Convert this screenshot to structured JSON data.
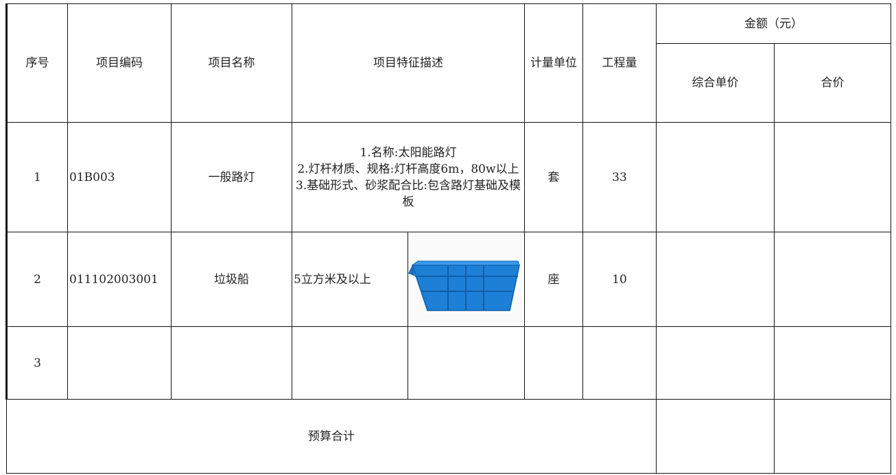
{
  "header": {
    "index": "序号",
    "code": "项目编码",
    "name": "项目名称",
    "description": "项目特征描述",
    "unit": "计量单位",
    "quantity": "工程量",
    "amount": "金额（元）",
    "unit_price": "综合单价",
    "total_price": "合价"
  },
  "rows": [
    {
      "index": 1,
      "code": "01B003",
      "name": "一般路灯",
      "description": [
        "1.名称:太阳能路灯",
        "2.灯杆材质、规格:灯杆高度6m，80w以上",
        "3.基础形式、砂浆配合比:包含路灯基础及模板"
      ],
      "unit": "套",
      "quantity": 33
    },
    {
      "index": 2,
      "code": "011102003001",
      "name": "垃圾船",
      "description": [
        "5立方米及以上"
      ],
      "unit": "座",
      "quantity": 10
    },
    {
      "index": 3
    }
  ],
  "total_label": "预算合计"
}
